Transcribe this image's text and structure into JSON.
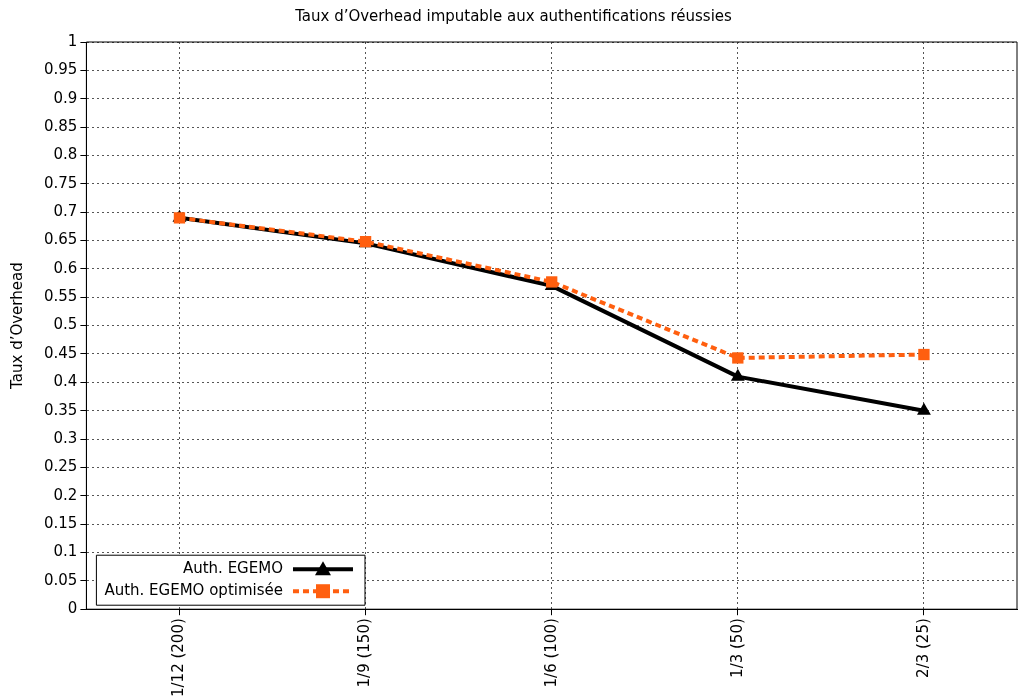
{
  "chart_data": {
    "type": "line",
    "title": "Taux d’Overhead imputable aux authentifications réussies",
    "ylabel": "Taux d’Overhead",
    "categories": [
      "1/12 (200)",
      "1/9 (150)",
      "1/6 (100)",
      "1/3 (50)",
      "2/3 (25)"
    ],
    "series": [
      {
        "name": "Auth. EGEMO",
        "color": "#000000",
        "marker": "triangle",
        "line_style": "solid",
        "values": [
          0.69,
          0.645,
          0.57,
          0.41,
          0.35
        ]
      },
      {
        "name": "Auth. EGEMO optimisée",
        "color": "#ff5f0f",
        "marker": "square",
        "line_style": "dashed",
        "values": [
          0.69,
          0.648,
          0.577,
          0.443,
          0.449
        ]
      }
    ],
    "ylim": [
      0,
      1
    ],
    "yticks": [
      0,
      0.05,
      0.1,
      0.15,
      0.2,
      0.25,
      0.3,
      0.35,
      0.4,
      0.45,
      0.5,
      0.55,
      0.6,
      0.65,
      0.7,
      0.75,
      0.8,
      0.85,
      0.9,
      0.95,
      1
    ],
    "grid": true,
    "legend": "bottom left"
  }
}
